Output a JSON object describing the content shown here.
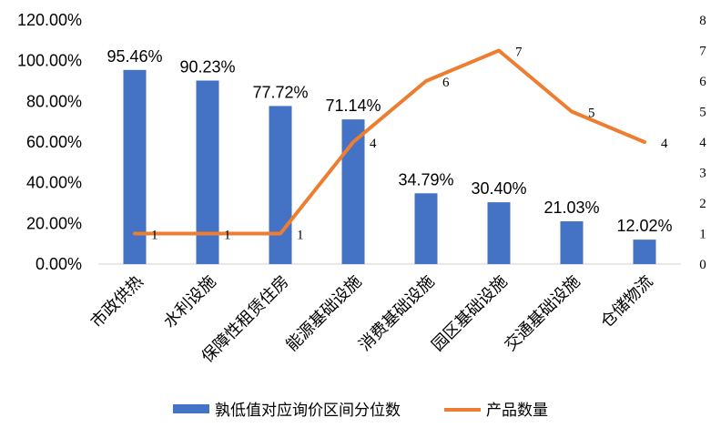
{
  "chart_data": {
    "type": "bar+line",
    "categories": [
      "市政供热",
      "水利设施",
      "保障性租赁住房",
      "能源基础设施",
      "消费基础设施",
      "园区基础设施",
      "交通基础设施",
      "仓储物流"
    ],
    "series": [
      {
        "name": "孰低值对应询价区间分位数",
        "type": "bar",
        "axis": "left",
        "values": [
          95.46,
          90.23,
          77.72,
          71.14,
          34.79,
          30.4,
          21.03,
          12.02
        ],
        "labels": [
          "95.46%",
          "90.23%",
          "77.72%",
          "71.14%",
          "34.79%",
          "30.40%",
          "21.03%",
          "12.02%"
        ],
        "color": "#4472C4"
      },
      {
        "name": "产品数量",
        "type": "line",
        "axis": "right",
        "values": [
          1,
          1,
          1,
          4,
          6,
          7,
          5,
          4
        ],
        "labels": [
          "1",
          "1",
          "1",
          "4",
          "6",
          "7",
          "5",
          "4"
        ],
        "color": "#ED7D31"
      }
    ],
    "y_left": {
      "min": 0,
      "max": 120,
      "step": 20,
      "tick_labels": [
        "0.00%",
        "20.00%",
        "40.00%",
        "60.00%",
        "80.00%",
        "100.00%",
        "120.00%"
      ]
    },
    "y_right": {
      "min": 0,
      "max": 8,
      "step": 1,
      "tick_labels": [
        "0",
        "1",
        "2",
        "3",
        "4",
        "5",
        "6",
        "7",
        "8"
      ]
    },
    "grid": false,
    "legend_position": "bottom"
  },
  "legend": {
    "bar_label": "孰低值对应询价区间分位数",
    "line_label": "产品数量"
  }
}
